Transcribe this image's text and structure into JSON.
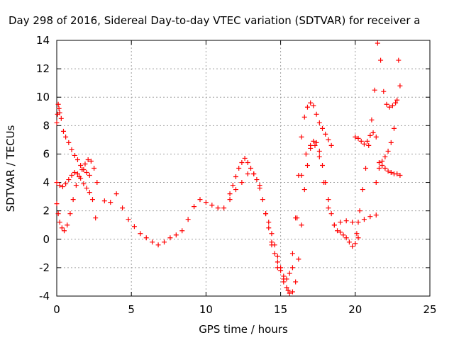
{
  "chart_data": {
    "type": "scatter",
    "title": "Day 298 of 2016, Sidereal Day-to-day VTEC variation (SDTVAR) for receiver a",
    "xlabel": "GPS time / hours",
    "ylabel": "SDTVAR / TECUs",
    "xlim": [
      0,
      25
    ],
    "ylim": [
      -4,
      14
    ],
    "xticks": [
      0,
      5,
      10,
      15,
      20,
      25
    ],
    "yticks": [
      -4,
      -2,
      0,
      2,
      4,
      6,
      8,
      10,
      12,
      14
    ],
    "grid": true,
    "marker": "+",
    "color": "#ff0000",
    "series": [
      {
        "x": [
          0.0,
          0.05,
          0.1,
          0.15,
          0.2,
          0.3,
          0.45,
          0.6,
          0.8,
          1.0,
          1.2,
          1.4,
          1.6,
          1.8,
          2.0,
          2.2
        ],
        "y": [
          8.2,
          8.8,
          9.5,
          9.2,
          8.9,
          8.5,
          7.6,
          7.2,
          6.8,
          6.3,
          5.9,
          5.6,
          5.2,
          4.9,
          4.7,
          4.5
        ]
      },
      {
        "x": [
          0.0,
          0.1,
          0.2,
          0.35,
          0.5,
          0.7,
          0.9,
          1.1,
          1.3,
          1.5,
          1.7,
          1.9,
          2.1,
          2.3,
          2.5,
          2.7
        ],
        "y": [
          2.5,
          1.8,
          1.2,
          0.8,
          0.6,
          1.0,
          1.8,
          2.8,
          3.8,
          4.4,
          4.9,
          5.3,
          5.6,
          5.5,
          5.0,
          4.0
        ]
      },
      {
        "x": [
          0.0,
          0.2,
          0.4,
          0.6,
          0.8,
          1.0,
          1.2,
          1.4,
          1.6,
          1.8,
          2.0,
          2.2,
          2.4,
          2.6
        ],
        "y": [
          4.0,
          3.8,
          3.7,
          3.9,
          4.2,
          4.5,
          4.7,
          4.6,
          4.3,
          3.9,
          3.6,
          3.3,
          2.8,
          1.5
        ]
      },
      {
        "x": [
          3.2,
          3.6,
          4.0,
          4.4,
          4.8,
          5.2,
          5.6,
          6.0,
          6.4,
          6.8,
          7.2,
          7.6,
          8.0,
          8.4,
          8.8,
          9.2,
          9.6,
          10.0,
          10.4,
          10.8,
          11.2,
          11.6,
          12.0,
          12.4,
          12.8,
          13.2,
          13.6,
          14.0,
          14.4,
          14.8,
          15.2,
          15.5,
          15.8,
          16.1,
          16.4,
          16.7,
          17.0,
          17.3,
          17.6,
          17.9,
          18.2,
          18.6,
          19.0,
          19.4,
          19.8,
          20.2,
          20.6,
          21.0,
          21.4
        ],
        "y": [
          2.7,
          2.6,
          3.2,
          2.2,
          1.4,
          0.9,
          0.4,
          0.1,
          -0.2,
          -0.4,
          -0.2,
          0.1,
          0.3,
          0.6,
          1.4,
          2.3,
          2.8,
          2.6,
          2.4,
          2.2,
          2.2,
          2.8,
          3.5,
          4.0,
          4.6,
          4.6,
          3.8,
          1.8,
          -0.4,
          -2.0,
          -3.0,
          -3.6,
          -2.0,
          1.5,
          4.5,
          6.0,
          6.6,
          6.6,
          5.8,
          4.0,
          2.2,
          1.0,
          1.2,
          1.3,
          1.2,
          1.2,
          1.4,
          1.6,
          1.7
        ]
      },
      {
        "x": [
          11.6,
          11.8,
          12.0,
          12.2,
          12.4,
          12.6,
          12.8,
          13.0,
          13.2,
          13.4,
          13.6,
          13.8,
          14.0,
          14.2,
          14.4,
          14.6,
          14.8,
          15.0,
          15.2,
          15.4,
          15.6,
          15.8,
          16.0,
          16.2,
          16.4,
          16.6,
          16.8,
          17.0,
          17.2,
          17.4,
          17.6,
          17.8,
          18.0,
          18.2,
          18.4
        ],
        "y": [
          3.2,
          3.8,
          4.4,
          5.0,
          5.4,
          5.7,
          5.4,
          5.0,
          4.6,
          4.2,
          3.6,
          2.8,
          1.8,
          0.8,
          -0.2,
          -1.0,
          -1.6,
          -2.2,
          -2.6,
          -2.8,
          -2.4,
          -1.0,
          1.5,
          4.5,
          7.2,
          8.6,
          9.3,
          9.6,
          9.4,
          8.8,
          8.2,
          7.8,
          7.4,
          7.0,
          6.6
        ]
      },
      {
        "x": [
          14.2,
          14.4,
          14.6,
          14.8,
          15.0,
          15.2,
          15.4,
          15.6,
          15.8,
          16.0,
          16.2,
          16.4,
          16.6,
          16.8,
          17.0,
          17.2,
          17.4,
          17.6,
          17.8,
          18.0,
          18.2,
          18.4,
          18.6,
          18.8,
          19.0,
          19.2,
          19.4,
          19.6,
          19.8,
          20.0,
          20.2
        ],
        "y": [
          1.2,
          0.4,
          -0.4,
          -1.2,
          -2.0,
          -2.8,
          -3.4,
          -3.8,
          -3.7,
          -3.0,
          -1.4,
          1.0,
          3.5,
          5.2,
          6.4,
          6.9,
          6.8,
          6.2,
          5.2,
          4.0,
          2.8,
          1.8,
          1.0,
          0.6,
          0.5,
          0.3,
          0.1,
          -0.2,
          -0.5,
          -0.3,
          0.1
        ]
      },
      {
        "x": [
          20.0,
          20.2,
          20.4,
          20.6,
          20.8,
          21.0,
          21.2,
          21.4
        ],
        "y": [
          7.2,
          7.1,
          6.9,
          6.7,
          6.9,
          7.3,
          7.5,
          7.2
        ]
      },
      {
        "x": [
          20.1,
          20.3,
          20.5,
          20.7,
          20.9,
          21.1,
          21.3,
          21.5,
          21.7,
          21.9,
          22.1,
          22.3,
          22.5,
          22.7,
          22.9
        ],
        "y": [
          0.4,
          2.0,
          3.5,
          5.0,
          6.6,
          8.4,
          10.5,
          13.8,
          12.6,
          10.4,
          9.5,
          9.3,
          9.4,
          9.6,
          12.6
        ]
      },
      {
        "x": [
          21.4,
          21.6,
          21.8,
          22.0,
          22.2,
          22.4,
          22.6,
          22.8,
          23.0
        ],
        "y": [
          4.0,
          5.0,
          5.5,
          5.8,
          6.2,
          6.8,
          7.8,
          9.8,
          10.8
        ]
      },
      {
        "x": [
          21.6,
          21.8,
          22.0,
          22.2,
          22.4,
          22.6,
          22.8,
          23.0
        ],
        "y": [
          5.4,
          5.2,
          5.0,
          4.8,
          4.7,
          4.6,
          4.6,
          4.5
        ]
      }
    ]
  }
}
